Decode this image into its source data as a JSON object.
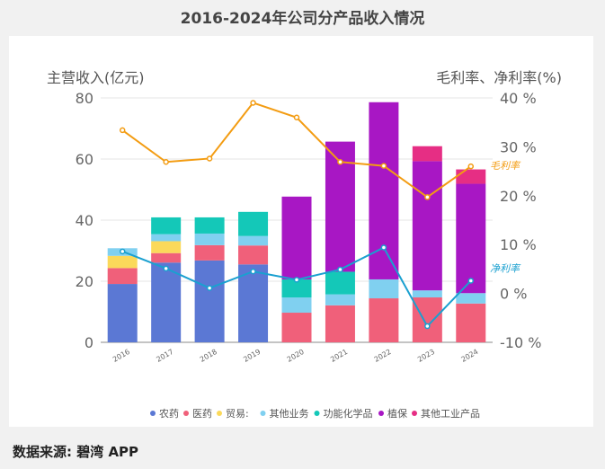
{
  "title": "2016-2024年公司分产品收入情况",
  "source": "数据来源: 碧湾 APP",
  "chart_data": {
    "type": "bar+line",
    "title": "2016-2024年公司分产品收入情况",
    "ylabel_left": "主营收入(亿元)",
    "ylabel_right": "毛利率、净利率(%)",
    "ylim_left": [
      0,
      80
    ],
    "yticks_left": [
      "0",
      "20",
      "40",
      "60",
      "80"
    ],
    "ylim_right": [
      -10,
      40
    ],
    "yticks_right": [
      "-10 %",
      "0 %",
      "10 %",
      "20 %",
      "30 %",
      "40 %"
    ],
    "grid": true,
    "legend_position": "bottom",
    "categories": [
      "2016",
      "2017",
      "2018",
      "2019",
      "2020",
      "2021",
      "2022",
      "2023",
      "2024"
    ],
    "bar_series": [
      {
        "name": "农药",
        "color": "#5b78d4",
        "values": [
          19.1,
          26.1,
          26.8,
          25.5,
          0,
          0,
          0,
          0,
          0
        ]
      },
      {
        "name": "医药",
        "color": "#f0607a",
        "values": [
          5.2,
          3.1,
          5.0,
          6.2,
          9.7,
          12.1,
          14.4,
          14.7,
          12.7
        ]
      },
      {
        "name": "贸易:",
        "color": "#fbd95a",
        "values": [
          4.0,
          3.9,
          0,
          0,
          0,
          0,
          0,
          0,
          0
        ]
      },
      {
        "name": "其他业务",
        "color": "#80d0f0",
        "values": [
          2.5,
          2.3,
          3.8,
          3.1,
          5.0,
          3.6,
          6.2,
          2.3,
          3.4
        ]
      },
      {
        "name": "功能化学品",
        "color": "#14c8b8",
        "values": [
          0,
          5.5,
          5.3,
          7.9,
          5.9,
          7.4,
          0,
          0,
          0
        ]
      },
      {
        "name": "植保",
        "color": "#a817c4",
        "values": [
          0,
          0,
          0,
          0,
          27.1,
          42.6,
          58.0,
          42.3,
          35.8
        ]
      },
      {
        "name": "其他工业产品",
        "color": "#e62e84",
        "values": [
          0,
          0,
          0,
          0,
          0,
          0,
          0,
          4.9,
          4.7
        ]
      }
    ],
    "line_series": [
      {
        "name": "毛利率",
        "color": "#f39c12",
        "values": [
          33.4,
          26.9,
          27.6,
          39.0,
          36.0,
          26.9,
          26.1,
          19.7,
          26.0
        ]
      },
      {
        "name": "净利率",
        "color": "#1aa0d0",
        "values": [
          8.6,
          5.1,
          1.1,
          4.5,
          2.8,
          4.9,
          9.4,
          -6.7,
          2.6
        ]
      }
    ]
  }
}
